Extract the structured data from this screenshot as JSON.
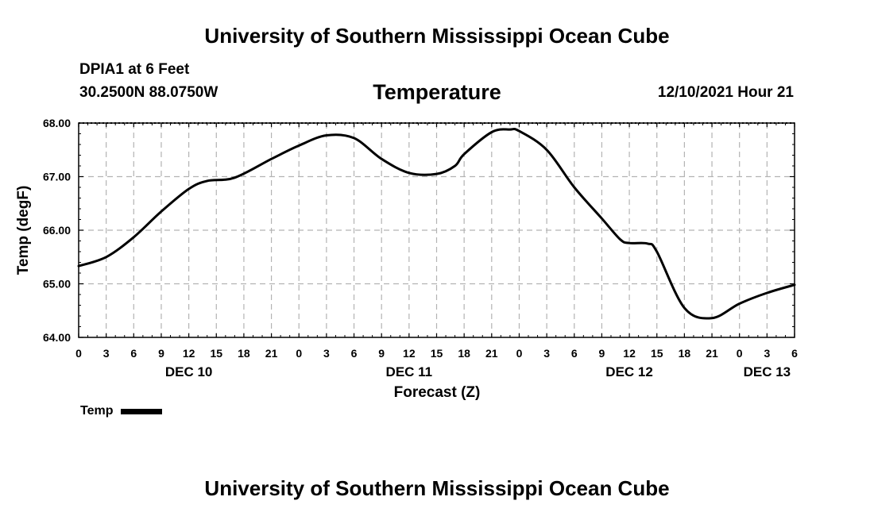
{
  "header": {
    "title": "University of Southern Mississippi Ocean Cube",
    "station": "DPIA1 at 6 Feet",
    "coords": "30.2500N  88.0750W",
    "variable": "Temperature",
    "datetime": "12/10/2021 Hour 21"
  },
  "footer": {
    "title": "University of Southern Mississippi Ocean Cube"
  },
  "legend": {
    "label": "Temp",
    "color": "#000000"
  },
  "chart_data": {
    "type": "line",
    "title": "Temperature",
    "xlabel": "Forecast (Z)",
    "ylabel": "Temp (degF)",
    "ylim": [
      64,
      68
    ],
    "xlim": [
      0,
      78
    ],
    "yticks": [
      "64.00",
      "65.00",
      "66.00",
      "67.00",
      "68.00"
    ],
    "xticks": [
      "0",
      "3",
      "6",
      "9",
      "12",
      "15",
      "18",
      "21",
      "0",
      "3",
      "6",
      "9",
      "12",
      "15",
      "18",
      "21",
      "0",
      "3",
      "6",
      "9",
      "12",
      "15",
      "18",
      "21",
      "0",
      "3",
      "6"
    ],
    "date_labels": [
      {
        "label": "DEC 10",
        "at_hour": 12
      },
      {
        "label": "DEC 11",
        "at_hour": 36
      },
      {
        "label": "DEC 12",
        "at_hour": 60
      },
      {
        "label": "DEC 13",
        "at_hour": 75
      }
    ],
    "grid": true,
    "series": [
      {
        "name": "Temp",
        "x": [
          0,
          3,
          6,
          9,
          12,
          14,
          17,
          21,
          24,
          27,
          30,
          33,
          36,
          39,
          41,
          42,
          45,
          47,
          48,
          51,
          54,
          57,
          59,
          60,
          62,
          63,
          66,
          69,
          72,
          75,
          78
        ],
        "values": [
          65.33,
          65.5,
          65.87,
          66.35,
          66.77,
          66.92,
          66.98,
          67.33,
          67.58,
          67.77,
          67.72,
          67.33,
          67.07,
          67.05,
          67.2,
          67.42,
          67.83,
          67.88,
          67.85,
          67.5,
          66.8,
          66.22,
          65.83,
          65.76,
          65.75,
          65.6,
          64.55,
          64.36,
          64.63,
          64.83,
          64.98
        ]
      }
    ]
  }
}
